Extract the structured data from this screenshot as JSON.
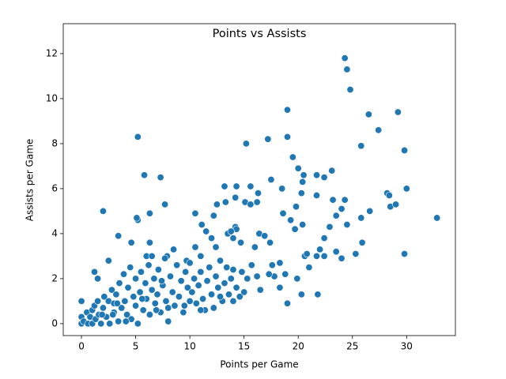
{
  "chart_data": {
    "type": "scatter",
    "title": "Points vs Assists",
    "x_label": "Points per Game",
    "y_label": "Assists per Game",
    "color": "#1f77b4",
    "xlim": [
      -1.68,
      34.5
    ],
    "ylim": [
      -0.53,
      13.33
    ],
    "xticks": [
      0,
      5,
      10,
      15,
      20,
      25,
      30
    ],
    "yticks": [
      0,
      2,
      4,
      6,
      8,
      10,
      12
    ],
    "grid": false,
    "x": [
      24.3,
      24.5,
      24.8,
      19,
      26.5,
      29.2,
      27.4,
      5.2,
      17.2,
      19,
      15.2,
      25.8,
      29.8,
      19.5,
      20,
      20.5,
      21.7,
      22.4,
      23.1,
      18.5,
      17.5,
      5.8,
      7.3,
      13.2,
      14.3,
      15.6,
      20.4,
      30,
      28.2,
      28.4,
      26.6,
      28.5,
      29,
      32.8,
      23.2,
      24.3,
      24,
      25.8,
      20.3,
      21.7,
      19.8,
      18.6,
      19.3,
      19.7,
      20.4,
      16.3,
      15.1,
      15.6,
      16.2,
      14.2,
      13.3,
      12.5,
      12.2,
      11.1,
      10.5,
      7.7,
      2,
      5.2,
      5.1,
      6.3,
      3.4,
      4.6,
      6.3,
      13.5,
      14.2,
      14.3,
      14,
      13.8,
      14.7,
      16,
      16.4,
      16.9,
      17.4,
      17.6,
      18.3,
      22.4,
      22.9,
      23.5,
      24.5,
      25.3,
      25.9,
      22,
      21.7,
      22.4,
      23.5,
      24,
      20.6,
      20.8,
      21,
      29.8,
      19,
      20.3,
      21.8,
      19.9,
      18.8,
      17.8,
      18.3,
      17.3,
      16.2,
      16.5,
      15.7,
      15.3,
      15,
      14,
      1.2,
      1.5,
      2.5,
      9.7,
      11,
      12.4,
      11.5,
      12,
      7.9,
      8.5,
      10.5,
      6,
      6.5,
      0,
      0,
      0,
      0.2,
      0.5,
      0.6,
      0.8,
      1,
      1,
      1.2,
      1.3,
      1.5,
      1.6,
      1.8,
      2,
      2.1,
      2.3,
      2.5,
      2.6,
      2.8,
      3,
      3,
      3.2,
      3.4,
      3.5,
      3.7,
      3.9,
      4,
      4.2,
      4.3,
      4.5,
      4.6,
      4.8,
      5,
      5,
      5.2,
      5.4,
      5.5,
      5.7,
      5.9,
      6,
      6.2,
      6.3,
      6.5,
      6.7,
      6.8,
      7,
      7.1,
      7.3,
      7.5,
      7.7,
      7.8,
      8,
      8.2,
      8.4,
      8.6,
      8.8,
      9,
      9.2,
      9.4,
      9.6,
      9.8,
      10,
      10,
      10.2,
      10.4,
      10.6,
      10.8,
      11,
      11.2,
      11.4,
      11.6,
      11.8,
      12,
      12.2,
      12.4,
      12.6,
      12.8,
      13,
      13.2,
      13.4,
      13.6,
      13.8,
      14,
      14.3,
      14.6,
      14.8,
      8,
      2.9,
      4.1,
      6.9,
      9.5,
      11,
      12.8,
      7.4,
      5.6,
      3.3,
      1.9
    ],
    "values": [
      11.8,
      11.3,
      10.4,
      9.5,
      9.3,
      9.4,
      8.6,
      8.3,
      8.2,
      8.3,
      8,
      7.9,
      7.7,
      7.4,
      6.9,
      6.6,
      6.6,
      6.5,
      6.8,
      6,
      6.4,
      6.6,
      6.5,
      6.1,
      6.1,
      6.1,
      6.3,
      6,
      5.8,
      5.7,
      5,
      5.2,
      5.3,
      4.7,
      5.5,
      5.5,
      5.1,
      4.7,
      5.8,
      5.7,
      5.2,
      4.9,
      4.6,
      4.2,
      4.4,
      5.8,
      5.4,
      5.3,
      5.4,
      5.6,
      5.4,
      5.3,
      4.8,
      4.4,
      4.9,
      5.3,
      5,
      4.6,
      4.7,
      4.9,
      3.9,
      3.6,
      3.6,
      4,
      4.3,
      4.2,
      3.8,
      4.1,
      3.6,
      3.4,
      4,
      3.9,
      3.6,
      2.6,
      2.7,
      3.8,
      4.3,
      4.8,
      4.4,
      3.1,
      3.6,
      3.3,
      3,
      3,
      3.2,
      2.9,
      3,
      3.1,
      2.5,
      3.1,
      0.9,
      1.3,
      1.3,
      2,
      2.2,
      2.1,
      1.6,
      2.2,
      2.1,
      1.5,
      2.6,
      2,
      1.4,
      2.4,
      2.3,
      2,
      2.8,
      2.8,
      3,
      3.4,
      4.1,
      3.8,
      3,
      3.3,
      3.4,
      3,
      3,
      0,
      0.3,
      1,
      0.1,
      0.5,
      0,
      0.3,
      0.6,
      0,
      0.8,
      0.2,
      1,
      0.4,
      0,
      0.7,
      1.2,
      0.3,
      1,
      0,
      1.5,
      0.5,
      0.9,
      1.3,
      0.1,
      1.8,
      0.7,
      2.2,
      1,
      0.4,
      1.6,
      2.5,
      0.2,
      1.2,
      0.8,
      2,
      0,
      1.4,
      2.3,
      0.6,
      1.8,
      1.1,
      2.6,
      0.4,
      1.5,
      2,
      0.9,
      1.3,
      2.4,
      0.5,
      1.7,
      2.9,
      1,
      0.7,
      2.1,
      1.4,
      0.8,
      2.6,
      1.2,
      1.9,
      0.5,
      2.3,
      1.6,
      1,
      2.7,
      1.4,
      2,
      0.9,
      1.7,
      2.3,
      1.1,
      0.6,
      1.9,
      2.5,
      1.3,
      0.7,
      2.1,
      1.6,
      2.8,
      1,
      1.8,
      2.5,
      1.3,
      2,
      1,
      1.6,
      1.2,
      2.3,
      0.1,
      0.4,
      0.1,
      0.6,
      0.8,
      0.6,
      1.2,
      1.9,
      1.1,
      0.9,
      0.4
    ]
  }
}
